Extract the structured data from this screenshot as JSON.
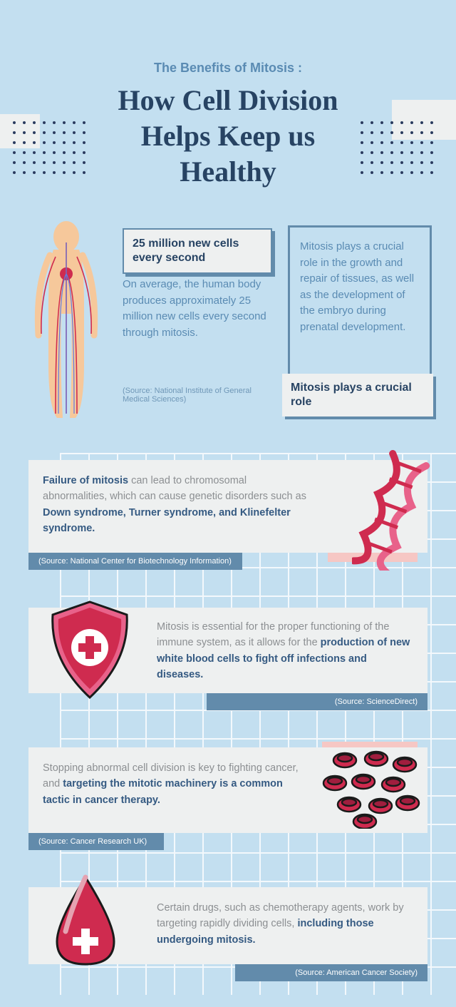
{
  "colors": {
    "background": "#c3dff0",
    "grey": "#eef0f0",
    "blue_dark": "#274363",
    "blue_mid": "#628bab",
    "blue_text": "#5a8bb3",
    "grey_text": "#8c8f92",
    "bold_blue": "#355a82",
    "pink_bg": "#f6c7c4",
    "red": "#cf2b4f",
    "red_dark": "#a01e3e",
    "skin": "#f6c89b"
  },
  "header": {
    "subtitle": "The Benefits of Mitosis :",
    "title_l1": "How Cell Division",
    "title_l2": "Helps Keep us",
    "title_l3": "Healthy"
  },
  "sec1": {
    "headline": "25 million new cells every second",
    "body": "On average, the human body produces approximately 25 million new cells every second through mitosis.",
    "source": "(Source: National Institute of General Medical Sciences)",
    "box2_body": "Mitosis plays a crucial role in the growth and repair of tissues, as well as the development of the embryo during prenatal development.",
    "box2_footer": "Mitosis plays a crucial role"
  },
  "cardA": {
    "lead": "Failure of mitosis",
    "mid": " can lead to chromosomal abnormalities, which can cause genetic disorders such as ",
    "bold": "Down syndrome, Turner syndrome, and Klinefelter syndrome.",
    "source": "(Source: National Center for Biotechnology Information)"
  },
  "cardB": {
    "lead": "Mitosis is essential for the proper functioning of the immune system, as it allows for the ",
    "bold": "production of new white blood cells to fight off infections and diseases.",
    "source": "(Source: ScienceDirect)"
  },
  "cardC": {
    "lead": "Stopping abnormal cell division is key to fighting cancer, and ",
    "bold": "targeting the mitotic machinery is a common tactic in cancer therapy.",
    "source": "(Source: Cancer Research UK)"
  },
  "cardD": {
    "lead": "Certain drugs, such as chemotherapy agents, work by targeting rapidly dividing cells, ",
    "bold": "including those undergoing mitosis.",
    "source": "(Source: American Cancer Society)"
  }
}
